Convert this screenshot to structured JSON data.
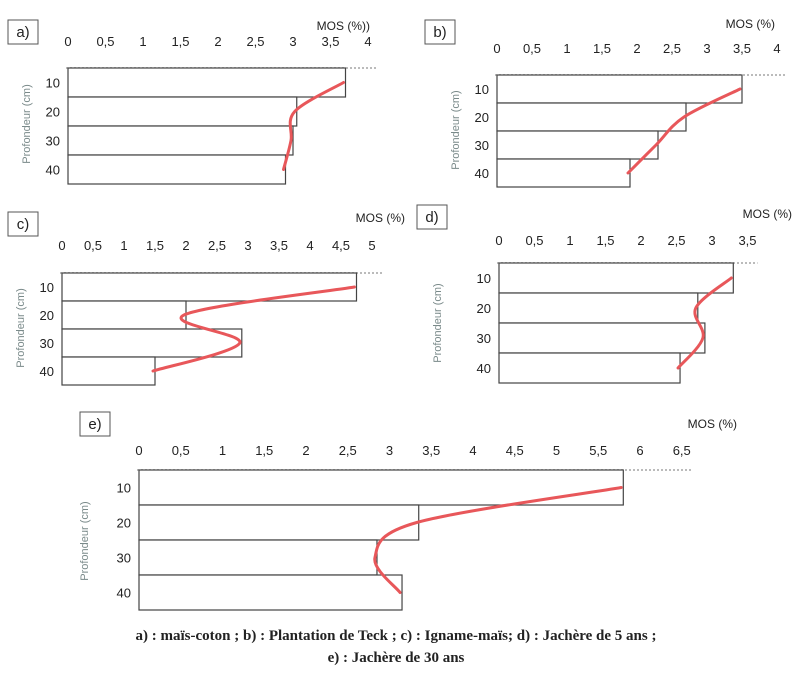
{
  "chart_data": [
    {
      "type": "bar",
      "panel": "a)",
      "xlabel": "MOS (%))",
      "ylabel": "Profondeur (cm)",
      "x_ticks": [
        "0",
        "0,5",
        "1",
        "1,5",
        "2",
        "2,5",
        "3",
        "3,5",
        "4"
      ],
      "xlim": [
        0,
        4
      ],
      "categories": [
        "10",
        "20",
        "30",
        "40"
      ],
      "values": [
        3.7,
        3.05,
        3.0,
        2.9
      ],
      "trend_color": "#e8575a",
      "bar_edge_color": "#444444"
    },
    {
      "type": "bar",
      "panel": "b)",
      "xlabel": "MOS (%)",
      "ylabel": "Profondeur (cm)",
      "x_ticks": [
        "0",
        "0,5",
        "1",
        "1,5",
        "2",
        "2,5",
        "3",
        "3,5",
        "4"
      ],
      "xlim": [
        0,
        4
      ],
      "categories": [
        "10",
        "20",
        "30",
        "40"
      ],
      "values": [
        3.5,
        2.7,
        2.3,
        1.9
      ],
      "trend_color": "#e8575a",
      "bar_edge_color": "#444444"
    },
    {
      "type": "bar",
      "panel": "c)",
      "xlabel": "MOS (%)",
      "ylabel": "Profondeur (cm)",
      "x_ticks": [
        "0",
        "0,5",
        "1",
        "1,5",
        "2",
        "2,5",
        "3",
        "3,5",
        "4",
        "4,5",
        "5"
      ],
      "xlim": [
        0,
        5
      ],
      "categories": [
        "10",
        "20",
        "30",
        "40"
      ],
      "values": [
        4.75,
        2.0,
        2.9,
        1.5
      ],
      "trend_color": "#e8575a",
      "bar_edge_color": "#444444"
    },
    {
      "type": "bar",
      "panel": "d)",
      "xlabel": "MOS (%)",
      "ylabel": "Profondeur (cm)",
      "x_ticks": [
        "0",
        "0,5",
        "1",
        "1,5",
        "2",
        "2,5",
        "3",
        "3,5"
      ],
      "xlim": [
        0,
        3.5
      ],
      "categories": [
        "10",
        "20",
        "30",
        "40"
      ],
      "values": [
        3.3,
        2.8,
        2.9,
        2.55
      ],
      "trend_color": "#e8575a",
      "bar_edge_color": "#444444"
    },
    {
      "type": "bar",
      "panel": "e)",
      "xlabel": "MOS (%)",
      "ylabel": "Profondeur (cm)",
      "x_ticks": [
        "0",
        "0,5",
        "1",
        "1,5",
        "2",
        "2,5",
        "3",
        "3,5",
        "4",
        "4,5",
        "5",
        "5,5",
        "6",
        "6,5"
      ],
      "xlim": [
        0,
        6.5
      ],
      "categories": [
        "10",
        "20",
        "30",
        "40"
      ],
      "values": [
        5.8,
        3.35,
        2.85,
        3.15
      ],
      "trend_color": "#e8575a",
      "bar_edge_color": "#444444"
    }
  ],
  "caption": {
    "line1": "a) : maïs-coton ; b) : Plantation de Teck ; c) : Igname-maïs; d) : Jachère de 5 ans ;",
    "line2": "e) : Jachère de 30 ans"
  }
}
